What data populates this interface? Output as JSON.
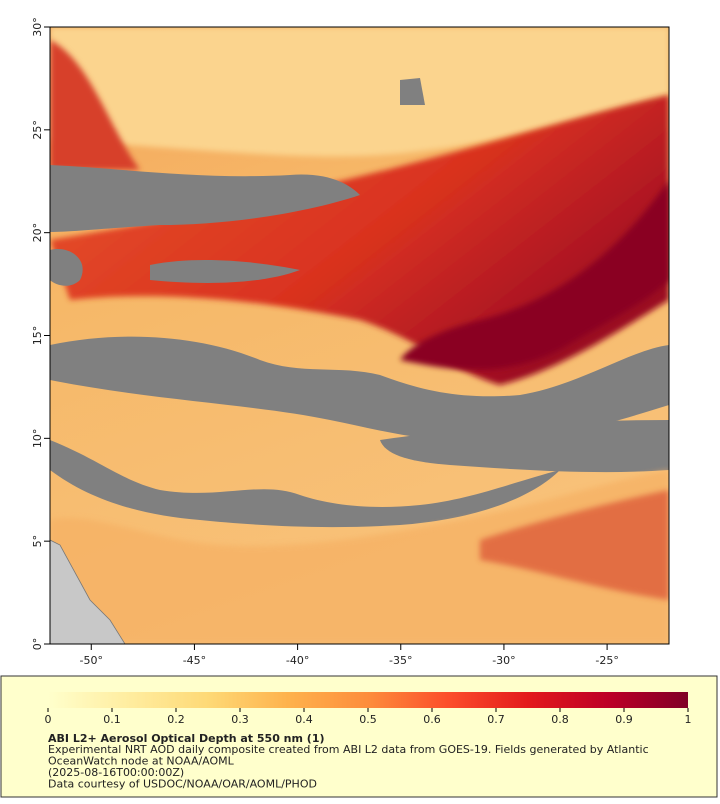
{
  "chart_data": {
    "type": "map",
    "xlim": [
      -52,
      -22
    ],
    "ylim": [
      0,
      30
    ],
    "xticks": [
      {
        "value": -50,
        "label": "-50°"
      },
      {
        "value": -45,
        "label": "-45°"
      },
      {
        "value": -40,
        "label": "-40°"
      },
      {
        "value": -35,
        "label": "-35°"
      },
      {
        "value": -30,
        "label": "-30°"
      },
      {
        "value": -25,
        "label": "-25°"
      }
    ],
    "yticks": [
      {
        "value": 0,
        "label": "0°"
      },
      {
        "value": 5,
        "label": "5°"
      },
      {
        "value": 10,
        "label": "10°"
      },
      {
        "value": 15,
        "label": "15°"
      },
      {
        "value": 20,
        "label": "20°"
      },
      {
        "value": 25,
        "label": "25°"
      },
      {
        "value": 30,
        "label": "30°"
      }
    ],
    "colorbar": {
      "lim": [
        0,
        1
      ],
      "ticks": [
        0,
        0.1,
        0.2,
        0.3,
        0.4,
        0.5,
        0.6,
        0.7,
        0.8,
        0.9,
        1
      ],
      "colors": [
        "#ffffcc",
        "#ffeda0",
        "#fed976",
        "#feb24c",
        "#fd8d3c",
        "#fc4e2a",
        "#e31a1c",
        "#bd0026",
        "#800026"
      ]
    },
    "caption": {
      "title": "ABI L2+ Aerosol Optical Depth at 550 nm (1)",
      "lines": [
        "Experimental NRT AOD daily composite created from ABI L2 data from GOES-19. Fields generated by Atlantic",
        "OceanWatch node at NOAA/AOML",
        "(2025-08-16T00:00:00Z)",
        "Data courtesy of USDOC/NOAA/OAR/AOML/PHOD"
      ]
    }
  }
}
